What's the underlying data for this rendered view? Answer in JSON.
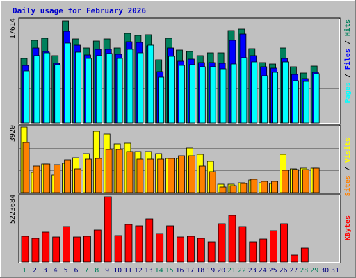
{
  "title": "Daily usage for February 2026",
  "colors": {
    "hits": "#00805c",
    "files": "#0000ff",
    "pages": "#00ffff",
    "visits": "#ffff00",
    "sites": "#ff8000",
    "kbytes": "#ff0000",
    "weekend_label": "#00805c",
    "weekday_label": "#000080",
    "title": "#0000cc",
    "panel_bg": "#c0c0c0",
    "grid": "#808080"
  },
  "chart_data": [
    {
      "type": "bar",
      "panel": "top",
      "ymax_label": "17614",
      "ylim": [
        0,
        17614
      ],
      "legend": [
        "Pages",
        "Files",
        "Hits"
      ],
      "categories": [
        "1",
        "2",
        "3",
        "4",
        "5",
        "6",
        "7",
        "8",
        "9",
        "10",
        "11",
        "12",
        "13",
        "14",
        "15",
        "16",
        "17",
        "18",
        "19",
        "20",
        "21",
        "22",
        "23",
        "24",
        "25",
        "26",
        "27",
        "28",
        "29",
        "30",
        "31"
      ],
      "series": [
        {
          "name": "Hits",
          "values": [
            11100,
            14200,
            14500,
            11500,
            17500,
            14400,
            12800,
            14000,
            14400,
            12800,
            15300,
            15000,
            15100,
            10800,
            14500,
            12500,
            12200,
            11600,
            12000,
            12000,
            15800,
            16100,
            12700,
            10300,
            10100,
            12800,
            9600,
            8600,
            9800,
            null,
            null
          ]
        },
        {
          "name": "Files",
          "values": [
            9900,
            12900,
            12300,
            10200,
            15700,
            13300,
            11700,
            12600,
            12600,
            11800,
            13900,
            13800,
            13200,
            8800,
            12800,
            10600,
            11000,
            10400,
            10300,
            10200,
            14200,
            15200,
            11500,
            9600,
            9400,
            11100,
            8300,
            7600,
            8700,
            null,
            null
          ]
        },
        {
          "name": "Pages",
          "values": [
            8900,
            11600,
            12000,
            10000,
            13700,
            12100,
            11100,
            11500,
            11900,
            11100,
            12600,
            12000,
            13300,
            7800,
            11400,
            9900,
            10000,
            9600,
            9600,
            9300,
            10100,
            11200,
            10500,
            8100,
            8700,
            10500,
            7300,
            7200,
            8500,
            null,
            null
          ]
        }
      ]
    },
    {
      "type": "bar",
      "panel": "middle",
      "ymax_label": "3920",
      "ylim": [
        0,
        3920
      ],
      "legend": [
        "Sites",
        "Visits"
      ],
      "categories": [
        "1",
        "2",
        "3",
        "4",
        "5",
        "6",
        "7",
        "8",
        "9",
        "10",
        "11",
        "12",
        "13",
        "14",
        "15",
        "16",
        "17",
        "18",
        "19",
        "20",
        "21",
        "22",
        "23",
        "24",
        "25",
        "26",
        "27",
        "28",
        "29",
        "30",
        "31"
      ],
      "series": [
        {
          "name": "Visits",
          "values": [
            3920,
            1200,
            1700,
            1050,
            1750,
            2100,
            2350,
            3650,
            3520,
            2920,
            2980,
            2480,
            2450,
            2320,
            2050,
            2050,
            2650,
            2300,
            1860,
            480,
            520,
            600,
            750,
            570,
            560,
            2300,
            1400,
            1450,
            1450,
            null,
            null
          ]
        },
        {
          "name": "Sites",
          "values": [
            3020,
            1600,
            1700,
            1660,
            1960,
            1420,
            2020,
            2050,
            2600,
            2600,
            2450,
            2020,
            2020,
            2020,
            2050,
            2200,
            2200,
            1580,
            1240,
            350,
            400,
            550,
            780,
            670,
            660,
            1320,
            1380,
            1380,
            1450,
            null,
            null
          ]
        }
      ]
    },
    {
      "type": "bar",
      "panel": "bottom",
      "ymax_label": "5223684",
      "ylim": [
        0,
        5223684
      ],
      "legend": [
        "KBytes"
      ],
      "categories": [
        "1",
        "2",
        "3",
        "4",
        "5",
        "6",
        "7",
        "8",
        "9",
        "10",
        "11",
        "12",
        "13",
        "14",
        "15",
        "16",
        "17",
        "18",
        "19",
        "20",
        "21",
        "22",
        "23",
        "24",
        "25",
        "26",
        "27",
        "28",
        "29",
        "30",
        "31"
      ],
      "series": [
        {
          "name": "KBytes",
          "values": [
            2050000,
            1880000,
            2380000,
            1980000,
            2820000,
            1980000,
            2080000,
            2550000,
            5223684,
            2120000,
            3020000,
            2900000,
            3420000,
            2270000,
            2900000,
            1980000,
            2080000,
            1880000,
            1620000,
            3080000,
            3720000,
            2850000,
            1620000,
            1820000,
            2520000,
            3080000,
            550000,
            1130000,
            null,
            null,
            null
          ]
        }
      ]
    }
  ],
  "x_labels": [
    "1",
    "2",
    "3",
    "4",
    "5",
    "6",
    "7",
    "8",
    "9",
    "10",
    "11",
    "12",
    "13",
    "14",
    "15",
    "16",
    "17",
    "18",
    "19",
    "20",
    "21",
    "22",
    "23",
    "24",
    "25",
    "26",
    "27",
    "28",
    "29",
    "30",
    "31"
  ],
  "weekend_days": [
    1,
    7,
    8,
    14,
    15,
    21,
    22,
    28,
    29
  ]
}
